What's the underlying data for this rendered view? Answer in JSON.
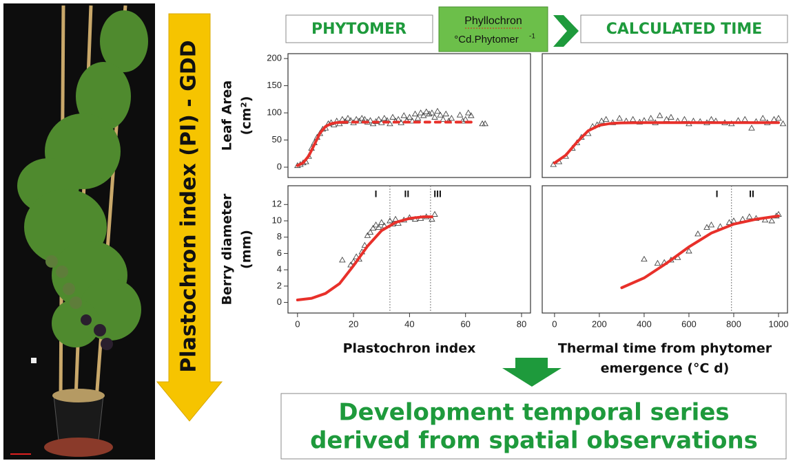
{
  "header": {
    "left_box": "PHYTOMER",
    "middle_box": {
      "line1": "Phyllochron",
      "line2": "°Cd.Phytomer",
      "superscript": "-1"
    },
    "right_box": "CALCULATED TIME"
  },
  "side_arrow": "Plastochron index  (PI) - GDD",
  "conclusion": [
    "Development temporal series",
    "derived from spatial observations"
  ],
  "chart_data": [
    {
      "type": "scatter",
      "ylabel": [
        "Leaf Area",
        "(cm²)"
      ],
      "xlim": [
        -3.4,
        83.2
      ],
      "ylim": [
        -19,
        209
      ],
      "yticks": [
        0,
        50,
        100,
        150,
        200
      ],
      "series": [
        {
          "color": "#444444",
          "marker": "triangle",
          "x": [
            0,
            1,
            2,
            3,
            4,
            5,
            6,
            7,
            8,
            9,
            10,
            11,
            12,
            13,
            14,
            15,
            16,
            17,
            18,
            19,
            20,
            21,
            22,
            23,
            24,
            25,
            26,
            27,
            28,
            29,
            30,
            31,
            32,
            33,
            34,
            35,
            36,
            37,
            38,
            39,
            40,
            41,
            42,
            43,
            44,
            45,
            46,
            47,
            48,
            49,
            50,
            51,
            52,
            53,
            54,
            55,
            58,
            59,
            60,
            61,
            62,
            66,
            67
          ],
          "values": [
            3,
            5,
            8,
            10,
            20,
            35,
            45,
            55,
            62,
            70,
            72,
            80,
            82,
            78,
            85,
            80,
            88,
            84,
            90,
            86,
            82,
            88,
            85,
            90,
            88,
            83,
            86,
            80,
            84,
            88,
            82,
            90,
            86,
            80,
            92,
            85,
            88,
            82,
            95,
            86,
            92,
            85,
            98,
            90,
            100,
            95,
            102,
            98,
            100,
            92,
            103,
            96,
            88,
            98,
            85,
            90,
            96,
            85,
            88,
            100,
            95,
            80,
            80
          ]
        },
        {
          "color": "#e8302a",
          "line": "solid",
          "x": [
            0,
            2,
            4,
            6,
            8,
            10,
            12,
            14,
            16
          ],
          "values": [
            2.9,
            8.1,
            20.6,
            41.5,
            62.4,
            74.9,
            80.1,
            82.1,
            82.8
          ]
        },
        {
          "color": "#e8302a",
          "line": "dashed",
          "x": [
            16,
            24,
            32,
            40,
            48,
            56,
            62
          ],
          "values": [
            82.8,
            83,
            83,
            83,
            83,
            83,
            83
          ]
        }
      ]
    },
    {
      "type": "scatter",
      "xlim": [
        -55,
        1040
      ],
      "ylim": [
        -19,
        209
      ],
      "series": [
        {
          "color": "#444444",
          "marker": "triangle",
          "x": [
            -5,
            20,
            50,
            80,
            100,
            120,
            150,
            170,
            190,
            210,
            230,
            260,
            290,
            320,
            350,
            380,
            400,
            430,
            450,
            470,
            500,
            520,
            550,
            580,
            600,
            620,
            650,
            680,
            700,
            720,
            760,
            790,
            820,
            850,
            880,
            900,
            930,
            950,
            980,
            1000,
            1020
          ],
          "values": [
            5,
            10,
            20,
            35,
            45,
            55,
            62,
            75,
            78,
            85,
            88,
            82,
            90,
            85,
            88,
            83,
            86,
            90,
            82,
            95,
            88,
            92,
            85,
            88,
            80,
            85,
            84,
            82,
            88,
            85,
            82,
            80,
            86,
            88,
            72,
            84,
            90,
            82,
            88,
            90,
            80
          ]
        },
        {
          "color": "#e8302a",
          "line": "solid",
          "x": [
            0,
            50,
            100,
            150,
            200,
            250,
            300,
            400,
            500,
            600,
            700,
            800,
            900,
            1000
          ],
          "values": [
            7.8,
            22,
            46,
            67,
            77,
            80.5,
            81.6,
            82,
            82,
            82,
            82,
            82,
            82,
            82
          ]
        }
      ]
    },
    {
      "type": "scatter",
      "ylabel": [
        "Berry diameter",
        "(mm)"
      ],
      "xlabel": [
        "Plastochron index"
      ],
      "xlim": [
        -3.4,
        83.2
      ],
      "ylim": [
        -1.3,
        14.3
      ],
      "xticks": [
        0,
        20,
        40,
        60,
        80
      ],
      "yticks": [
        0,
        2,
        4,
        6,
        8,
        10,
        12
      ],
      "vlines": [
        33,
        47.5
      ],
      "annotations": [
        {
          "text": "I",
          "x": 28
        },
        {
          "text": "II",
          "x": 39
        },
        {
          "text": "III",
          "x": 50
        }
      ],
      "series": [
        {
          "color": "#444444",
          "marker": "triangle",
          "x": [
            16,
            19,
            20,
            21,
            22,
            23,
            24,
            25,
            26,
            27,
            28,
            29,
            30,
            31,
            33,
            34,
            35,
            36,
            38,
            40,
            42,
            44,
            46,
            48,
            49
          ],
          "values": [
            5.2,
            4.6,
            5,
            5.6,
            5.3,
            6.2,
            7,
            8.2,
            8.6,
            9.1,
            9.5,
            9.2,
            9.8,
            9.4,
            10,
            9.6,
            10.2,
            9.7,
            10.1,
            10.4,
            10.2,
            10.3,
            10.5,
            10.2,
            10.8
          ]
        },
        {
          "color": "#e8302a",
          "line": "solid",
          "x": [
            0,
            5,
            10,
            15,
            20,
            25,
            30,
            35,
            40,
            45,
            48
          ],
          "values": [
            0.3,
            0.5,
            1.1,
            2.3,
            4.5,
            6.9,
            8.8,
            9.8,
            10.3,
            10.5,
            10.5
          ]
        }
      ]
    },
    {
      "type": "scatter",
      "xlabel": [
        "Thermal time from phytomer",
        "emergence (°C d)"
      ],
      "xlim": [
        -55,
        1040
      ],
      "ylim": [
        -1.3,
        14.3
      ],
      "xticks": [
        0,
        200,
        400,
        600,
        800,
        1000
      ],
      "vlines": [
        790
      ],
      "annotations": [
        {
          "text": "I",
          "x": 725
        },
        {
          "text": "II",
          "x": 880
        }
      ],
      "series": [
        {
          "color": "#444444",
          "marker": "triangle",
          "x": [
            400,
            460,
            490,
            520,
            550,
            600,
            640,
            680,
            700,
            740,
            780,
            800,
            840,
            870,
            900,
            940,
            970,
            990,
            1000
          ],
          "values": [
            5.3,
            4.8,
            4.9,
            5.2,
            5.5,
            6.3,
            8.4,
            9.2,
            9.5,
            9.3,
            9.8,
            10,
            10.2,
            10.5,
            10.3,
            10.1,
            10,
            10.6,
            10.8
          ]
        },
        {
          "color": "#e8302a",
          "line": "solid",
          "x": [
            300,
            400,
            500,
            600,
            700,
            800,
            900,
            1000
          ],
          "values": [
            1.8,
            3,
            4.8,
            6.8,
            8.5,
            9.6,
            10.2,
            10.6
          ]
        }
      ]
    }
  ]
}
